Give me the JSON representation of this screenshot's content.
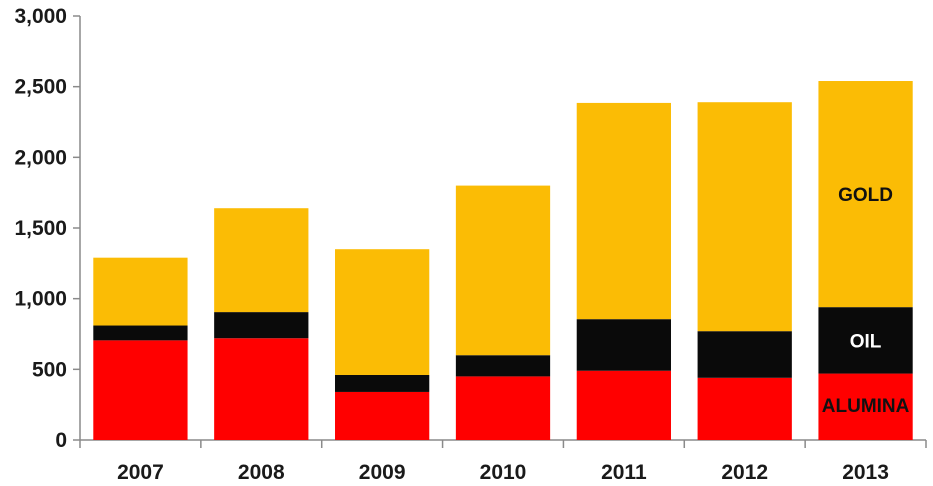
{
  "chart_data": {
    "type": "bar",
    "stacked": true,
    "title": "",
    "xlabel": "",
    "ylabel": "",
    "ylim": [
      0,
      3000
    ],
    "yticks": [
      0,
      500,
      1000,
      1500,
      2000,
      2500,
      3000
    ],
    "ytick_labels": [
      "0",
      "500",
      "1,000",
      "1,500",
      "2,000",
      "2,500",
      "3,000"
    ],
    "grid": false,
    "categories": [
      "2007",
      "2008",
      "2009",
      "2010",
      "2011",
      "2012",
      "2013"
    ],
    "series": [
      {
        "name": "ALUMINA",
        "color": "#ff0000",
        "values": [
          705,
          720,
          340,
          450,
          490,
          440,
          470
        ]
      },
      {
        "name": "OIL",
        "color": "#0a0a0a",
        "values": [
          105,
          185,
          120,
          150,
          365,
          330,
          470
        ]
      },
      {
        "name": "GOLD",
        "color": "#fbbc05",
        "values": [
          480,
          735,
          890,
          1200,
          1530,
          1620,
          1600
        ]
      }
    ],
    "segment_labels": {
      "category": "2013",
      "labels": [
        {
          "series": "ALUMINA",
          "text": "ALUMINA",
          "color": "#111111"
        },
        {
          "series": "OIL",
          "text": "OIL",
          "color": "#ffffff"
        },
        {
          "series": "GOLD",
          "text": "GOLD",
          "color": "#111111"
        }
      ]
    }
  }
}
